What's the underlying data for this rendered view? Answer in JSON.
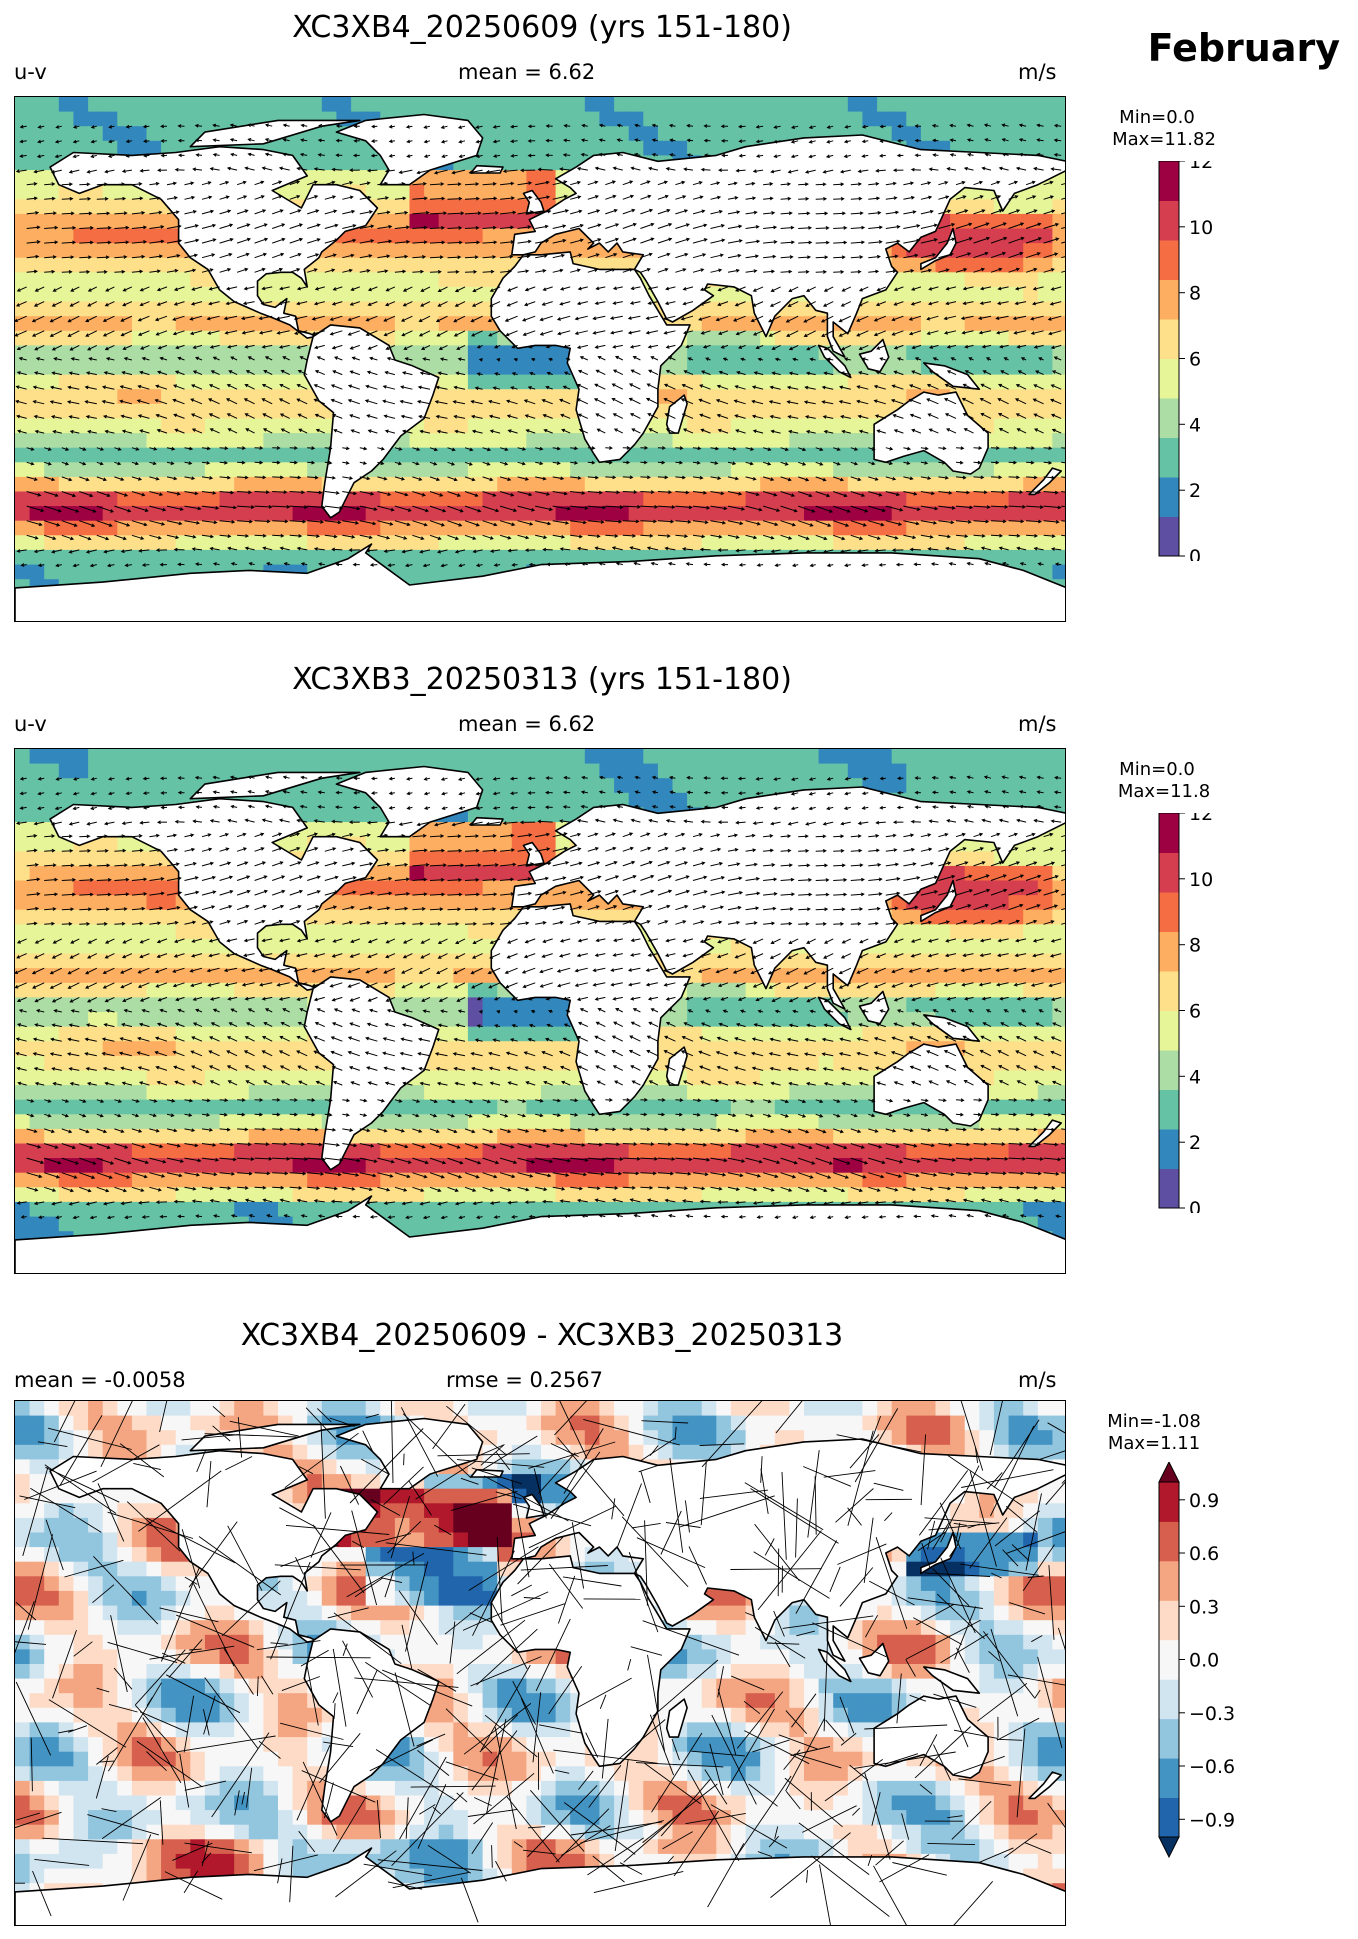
{
  "figure": {
    "month": "February",
    "panels": [
      {
        "id": "model1",
        "title": "XC3XB4_20250609 (yrs 151-180)",
        "left_label": "u-v",
        "center_label": "mean = 6.62",
        "right_label": "m/s",
        "min_label": "Min=0.0",
        "max_label": "Max=11.82",
        "colorbar": {
          "ticks": [
            "0",
            "2",
            "4",
            "6",
            "8",
            "10",
            "12"
          ],
          "range": [
            0,
            12
          ],
          "colormap": "RdYlBu_r-spectral",
          "extend": "none"
        }
      },
      {
        "id": "model2",
        "title": "XC3XB3_20250313 (yrs 151-180)",
        "left_label": "u-v",
        "center_label": "mean = 6.62",
        "right_label": "m/s",
        "min_label": "Min=0.0",
        "max_label": "Max=11.8",
        "colorbar": {
          "ticks": [
            "0",
            "2",
            "4",
            "6",
            "8",
            "10",
            "12"
          ],
          "range": [
            0,
            12
          ],
          "colormap": "RdYlBu_r-spectral",
          "extend": "none"
        }
      },
      {
        "id": "difference",
        "title": "XC3XB4_20250609 - XC3XB3_20250313",
        "left_label": "mean = -0.0058",
        "center_label": "rmse = 0.2567",
        "right_label": "m/s",
        "min_label": "Min=-1.08",
        "max_label": "Max=1.11",
        "colorbar": {
          "ticks": [
            "−0.9",
            "−0.6",
            "−0.3",
            "0.0",
            "0.3",
            "0.6",
            "0.9"
          ],
          "range": [
            -1.0,
            1.0
          ],
          "colormap": "RdBu_r",
          "extend": "both"
        }
      }
    ]
  },
  "colors": {
    "speed_levels": [
      "#5e4fa2",
      "#3288bd",
      "#66c2a5",
      "#abdda4",
      "#e6f598",
      "#fee08b",
      "#fdae61",
      "#f46d43",
      "#d53e4f",
      "#9e0142"
    ],
    "diff_levels": [
      "#053061",
      "#2166ac",
      "#4393c3",
      "#92c5de",
      "#d1e5f0",
      "#f7f7f7",
      "#fddbc7",
      "#f4a582",
      "#d6604d",
      "#b2182b",
      "#67001f"
    ],
    "land": "#ffffff",
    "coast": "#000000"
  }
}
